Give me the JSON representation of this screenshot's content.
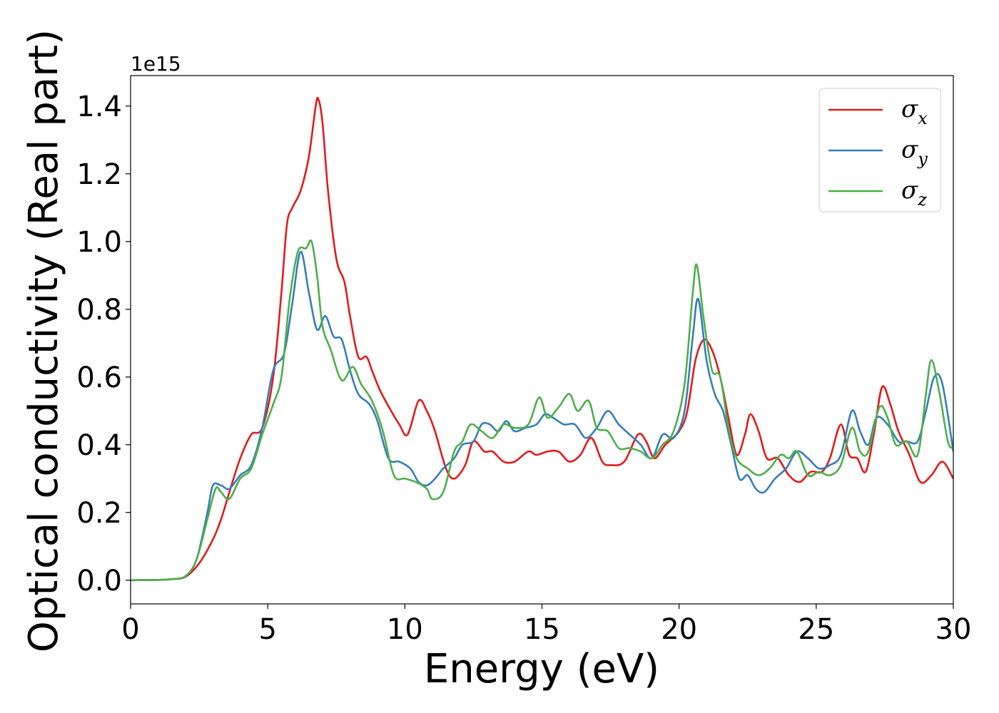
{
  "chart_data": {
    "type": "line",
    "title": "",
    "xlabel": "Energy (eV)",
    "ylabel": "Optical conductivity (Real part)",
    "y_offset_text": "1e15",
    "xlim": [
      0,
      30
    ],
    "ylim": [
      -0.07,
      1.49
    ],
    "x_ticks": [
      0,
      5,
      10,
      15,
      20,
      25,
      30
    ],
    "x_tick_labels": [
      "0",
      "5",
      "10",
      "15",
      "20",
      "25",
      "30"
    ],
    "y_ticks": [
      0.0,
      0.2,
      0.4,
      0.6,
      0.8,
      1.0,
      1.2,
      1.4
    ],
    "y_tick_labels": [
      "0.0",
      "0.2",
      "0.4",
      "0.6",
      "0.8",
      "1.0",
      "1.2",
      "1.4"
    ],
    "grid": false,
    "legend_position": "top-right",
    "series": [
      {
        "name": "σx",
        "legend_symbol": "σ",
        "legend_sub": "x",
        "color": "#e41a1c",
        "points": [
          [
            0,
            0
          ],
          [
            1,
            0.001
          ],
          [
            1.5,
            0.003
          ],
          [
            2,
            0.01
          ],
          [
            2.5,
            0.05
          ],
          [
            3,
            0.12
          ],
          [
            3.3,
            0.18
          ],
          [
            3.6,
            0.26
          ],
          [
            4,
            0.36
          ],
          [
            4.4,
            0.43
          ],
          [
            4.8,
            0.45
          ],
          [
            5.2,
            0.6
          ],
          [
            5.5,
            0.85
          ],
          [
            5.7,
            1.05
          ],
          [
            5.9,
            1.1
          ],
          [
            6.2,
            1.15
          ],
          [
            6.5,
            1.25
          ],
          [
            6.75,
            1.4
          ],
          [
            6.85,
            1.42
          ],
          [
            7,
            1.35
          ],
          [
            7.2,
            1.15
          ],
          [
            7.5,
            0.95
          ],
          [
            7.8,
            0.88
          ],
          [
            8,
            0.78
          ],
          [
            8.3,
            0.66
          ],
          [
            8.6,
            0.66
          ],
          [
            8.8,
            0.62
          ],
          [
            9.1,
            0.56
          ],
          [
            9.5,
            0.5
          ],
          [
            9.8,
            0.46
          ],
          [
            10.1,
            0.43
          ],
          [
            10.5,
            0.53
          ],
          [
            10.8,
            0.5
          ],
          [
            11.1,
            0.44
          ],
          [
            11.5,
            0.33
          ],
          [
            11.8,
            0.3
          ],
          [
            12.2,
            0.34
          ],
          [
            12.5,
            0.41
          ],
          [
            12.9,
            0.38
          ],
          [
            13.2,
            0.38
          ],
          [
            13.6,
            0.35
          ],
          [
            14,
            0.35
          ],
          [
            14.5,
            0.38
          ],
          [
            14.8,
            0.37
          ],
          [
            15.2,
            0.38
          ],
          [
            15.6,
            0.38
          ],
          [
            16,
            0.35
          ],
          [
            16.4,
            0.37
          ],
          [
            16.8,
            0.42
          ],
          [
            17.2,
            0.35
          ],
          [
            17.5,
            0.34
          ],
          [
            18,
            0.35
          ],
          [
            18.5,
            0.43
          ],
          [
            18.8,
            0.41
          ],
          [
            19.1,
            0.36
          ],
          [
            19.5,
            0.4
          ],
          [
            20,
            0.44
          ],
          [
            20.3,
            0.5
          ],
          [
            20.6,
            0.65
          ],
          [
            20.9,
            0.71
          ],
          [
            21.2,
            0.68
          ],
          [
            21.5,
            0.6
          ],
          [
            21.8,
            0.48
          ],
          [
            22.1,
            0.37
          ],
          [
            22.4,
            0.43
          ],
          [
            22.6,
            0.49
          ],
          [
            22.9,
            0.44
          ],
          [
            23.2,
            0.36
          ],
          [
            23.6,
            0.36
          ],
          [
            24,
            0.31
          ],
          [
            24.4,
            0.29
          ],
          [
            24.8,
            0.32
          ],
          [
            25.2,
            0.32
          ],
          [
            25.5,
            0.36
          ],
          [
            25.9,
            0.46
          ],
          [
            26.2,
            0.37
          ],
          [
            26.5,
            0.36
          ],
          [
            26.8,
            0.32
          ],
          [
            27.1,
            0.43
          ],
          [
            27.4,
            0.57
          ],
          [
            27.7,
            0.52
          ],
          [
            28,
            0.44
          ],
          [
            28.4,
            0.37
          ],
          [
            28.8,
            0.29
          ],
          [
            29.2,
            0.31
          ],
          [
            29.6,
            0.35
          ],
          [
            30,
            0.3
          ]
        ]
      },
      {
        "name": "σy",
        "legend_symbol": "σ",
        "legend_sub": "y",
        "color": "#377eb8",
        "points": [
          [
            0,
            0
          ],
          [
            1,
            0.001
          ],
          [
            1.5,
            0.003
          ],
          [
            2,
            0.012
          ],
          [
            2.4,
            0.06
          ],
          [
            2.8,
            0.2
          ],
          [
            3,
            0.28
          ],
          [
            3.3,
            0.28
          ],
          [
            3.6,
            0.27
          ],
          [
            4,
            0.31
          ],
          [
            4.4,
            0.34
          ],
          [
            4.8,
            0.45
          ],
          [
            5.2,
            0.62
          ],
          [
            5.6,
            0.67
          ],
          [
            5.9,
            0.82
          ],
          [
            6.2,
            0.97
          ],
          [
            6.5,
            0.85
          ],
          [
            6.8,
            0.74
          ],
          [
            7.1,
            0.78
          ],
          [
            7.4,
            0.72
          ],
          [
            7.7,
            0.71
          ],
          [
            8,
            0.62
          ],
          [
            8.3,
            0.55
          ],
          [
            8.7,
            0.52
          ],
          [
            9,
            0.47
          ],
          [
            9.4,
            0.36
          ],
          [
            9.8,
            0.35
          ],
          [
            10.2,
            0.33
          ],
          [
            10.5,
            0.29
          ],
          [
            10.8,
            0.28
          ],
          [
            11.1,
            0.3
          ],
          [
            11.4,
            0.33
          ],
          [
            11.8,
            0.36
          ],
          [
            12.1,
            0.4
          ],
          [
            12.5,
            0.41
          ],
          [
            12.8,
            0.46
          ],
          [
            13.1,
            0.46
          ],
          [
            13.4,
            0.44
          ],
          [
            13.7,
            0.47
          ],
          [
            14,
            0.44
          ],
          [
            14.4,
            0.45
          ],
          [
            14.8,
            0.46
          ],
          [
            15.1,
            0.49
          ],
          [
            15.4,
            0.48
          ],
          [
            15.8,
            0.46
          ],
          [
            16.2,
            0.46
          ],
          [
            16.6,
            0.42
          ],
          [
            17,
            0.45
          ],
          [
            17.4,
            0.5
          ],
          [
            17.8,
            0.46
          ],
          [
            18.2,
            0.43
          ],
          [
            18.6,
            0.4
          ],
          [
            19,
            0.36
          ],
          [
            19.4,
            0.43
          ],
          [
            19.8,
            0.42
          ],
          [
            20.2,
            0.5
          ],
          [
            20.5,
            0.72
          ],
          [
            20.7,
            0.83
          ],
          [
            21,
            0.65
          ],
          [
            21.3,
            0.55
          ],
          [
            21.6,
            0.5
          ],
          [
            21.9,
            0.4
          ],
          [
            22.2,
            0.3
          ],
          [
            22.5,
            0.31
          ],
          [
            22.8,
            0.27
          ],
          [
            23.1,
            0.26
          ],
          [
            23.5,
            0.3
          ],
          [
            23.9,
            0.33
          ],
          [
            24.3,
            0.38
          ],
          [
            24.7,
            0.36
          ],
          [
            25.1,
            0.33
          ],
          [
            25.5,
            0.34
          ],
          [
            25.9,
            0.37
          ],
          [
            26.3,
            0.5
          ],
          [
            26.6,
            0.44
          ],
          [
            26.9,
            0.4
          ],
          [
            27.2,
            0.48
          ],
          [
            27.6,
            0.46
          ],
          [
            28,
            0.41
          ],
          [
            28.3,
            0.41
          ],
          [
            28.7,
            0.41
          ],
          [
            29,
            0.5
          ],
          [
            29.3,
            0.6
          ],
          [
            29.6,
            0.58
          ],
          [
            30,
            0.38
          ]
        ]
      },
      {
        "name": "σz",
        "legend_symbol": "σ",
        "legend_sub": "z",
        "color": "#4daf4a",
        "points": [
          [
            0,
            0
          ],
          [
            1,
            0.001
          ],
          [
            1.5,
            0.003
          ],
          [
            2,
            0.012
          ],
          [
            2.4,
            0.06
          ],
          [
            2.8,
            0.18
          ],
          [
            3.1,
            0.27
          ],
          [
            3.3,
            0.26
          ],
          [
            3.6,
            0.24
          ],
          [
            4,
            0.3
          ],
          [
            4.4,
            0.33
          ],
          [
            4.8,
            0.43
          ],
          [
            5.2,
            0.52
          ],
          [
            5.5,
            0.6
          ],
          [
            5.8,
            0.83
          ],
          [
            6.1,
            0.97
          ],
          [
            6.4,
            0.98
          ],
          [
            6.6,
            1.0
          ],
          [
            6.8,
            0.9
          ],
          [
            7,
            0.75
          ],
          [
            7.3,
            0.68
          ],
          [
            7.7,
            0.59
          ],
          [
            8.1,
            0.63
          ],
          [
            8.4,
            0.58
          ],
          [
            8.8,
            0.53
          ],
          [
            9.2,
            0.44
          ],
          [
            9.6,
            0.31
          ],
          [
            10,
            0.3
          ],
          [
            10.4,
            0.29
          ],
          [
            10.8,
            0.27
          ],
          [
            11,
            0.24
          ],
          [
            11.4,
            0.26
          ],
          [
            11.8,
            0.38
          ],
          [
            12.1,
            0.41
          ],
          [
            12.4,
            0.46
          ],
          [
            12.8,
            0.44
          ],
          [
            13.2,
            0.42
          ],
          [
            13.6,
            0.46
          ],
          [
            14,
            0.45
          ],
          [
            14.5,
            0.46
          ],
          [
            14.9,
            0.54
          ],
          [
            15.2,
            0.48
          ],
          [
            15.6,
            0.51
          ],
          [
            16,
            0.55
          ],
          [
            16.3,
            0.5
          ],
          [
            16.7,
            0.53
          ],
          [
            17,
            0.45
          ],
          [
            17.4,
            0.44
          ],
          [
            17.8,
            0.39
          ],
          [
            18.2,
            0.39
          ],
          [
            18.6,
            0.38
          ],
          [
            19,
            0.36
          ],
          [
            19.4,
            0.4
          ],
          [
            19.8,
            0.44
          ],
          [
            20.2,
            0.58
          ],
          [
            20.5,
            0.85
          ],
          [
            20.65,
            0.93
          ],
          [
            20.9,
            0.77
          ],
          [
            21.2,
            0.62
          ],
          [
            21.5,
            0.6
          ],
          [
            21.8,
            0.45
          ],
          [
            22.1,
            0.36
          ],
          [
            22.5,
            0.33
          ],
          [
            22.9,
            0.31
          ],
          [
            23.3,
            0.33
          ],
          [
            23.7,
            0.37
          ],
          [
            24,
            0.36
          ],
          [
            24.3,
            0.38
          ],
          [
            24.7,
            0.31
          ],
          [
            25.1,
            0.32
          ],
          [
            25.5,
            0.31
          ],
          [
            25.9,
            0.34
          ],
          [
            26.3,
            0.45
          ],
          [
            26.6,
            0.38
          ],
          [
            26.9,
            0.38
          ],
          [
            27.3,
            0.51
          ],
          [
            27.6,
            0.48
          ],
          [
            27.9,
            0.4
          ],
          [
            28.3,
            0.41
          ],
          [
            28.7,
            0.37
          ],
          [
            29,
            0.55
          ],
          [
            29.2,
            0.65
          ],
          [
            29.5,
            0.55
          ],
          [
            29.8,
            0.41
          ],
          [
            30,
            0.39
          ]
        ]
      }
    ]
  }
}
